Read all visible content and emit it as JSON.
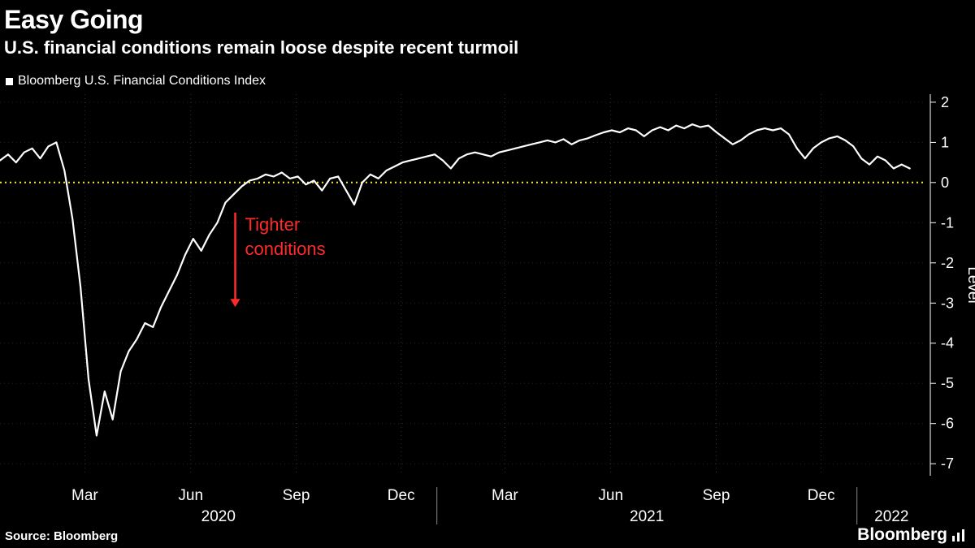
{
  "header": {
    "title": "Easy Going",
    "subtitle": "U.S. financial conditions remain loose despite recent turmoil"
  },
  "legend": {
    "series_label": "Bloomberg U.S. Financial Conditions Index",
    "swatch_color": "#ffffff"
  },
  "footer": {
    "source": "Source: Bloomberg",
    "brand": "Bloomberg"
  },
  "colors": {
    "background": "#000000",
    "line": "#ffffff",
    "zero_line": "#f2e745",
    "grid": "#2f2f2f",
    "grid_h": "#242424",
    "axis": "#ffffff",
    "annotation": "#ff2b2b"
  },
  "chart_data": {
    "type": "line",
    "title": "Easy Going",
    "subtitle": "U.S. financial conditions remain loose despite recent turmoil",
    "series_name": "Bloomberg U.S. Financial Conditions Index",
    "xlabel": "",
    "ylabel": "Level",
    "ylim": [
      -7.3,
      2.2
    ],
    "yticks": [
      2,
      1,
      0,
      -1,
      -2,
      -3,
      -4,
      -5,
      -6,
      -7
    ],
    "zero_line": 0,
    "grid": "dotted",
    "legend_position": "top-left",
    "x_domain_years": [
      2019.96,
      2022.165
    ],
    "x_ticks": [
      {
        "label": "Mar",
        "t": 2020.162
      },
      {
        "label": "Jun",
        "t": 2020.414
      },
      {
        "label": "Sep",
        "t": 2020.665
      },
      {
        "label": "Dec",
        "t": 2020.915
      },
      {
        "label": "Mar",
        "t": 2021.162
      },
      {
        "label": "Jun",
        "t": 2021.414
      },
      {
        "label": "Sep",
        "t": 2021.665
      },
      {
        "label": "Dec",
        "t": 2021.915
      }
    ],
    "year_labels": [
      {
        "label": "2020",
        "t_start": 2019.96,
        "t_end": 2021.0
      },
      {
        "label": "2021",
        "t_start": 2021.0,
        "t_end": 2022.0
      },
      {
        "label": "2022",
        "t_start": 2022.0,
        "t_end": 2022.165
      }
    ],
    "annotation": {
      "lines": [
        "Tighter",
        "conditions"
      ],
      "arrow_t": 2020.52,
      "arrow_from": -0.75,
      "arrow_to": -3.1
    },
    "series": {
      "name": "Bloomberg U.S. Financial Conditions Index",
      "t0": 2019.96,
      "dt": 0.019165,
      "values": [
        0.55,
        0.7,
        0.5,
        0.75,
        0.85,
        0.6,
        0.9,
        1.0,
        0.3,
        -0.9,
        -2.6,
        -4.9,
        -6.3,
        -5.2,
        -5.9,
        -4.7,
        -4.2,
        -3.9,
        -3.5,
        -3.6,
        -3.1,
        -2.7,
        -2.3,
        -1.8,
        -1.4,
        -1.7,
        -1.3,
        -1.0,
        -0.5,
        -0.3,
        -0.1,
        0.05,
        0.1,
        0.2,
        0.15,
        0.25,
        0.1,
        0.15,
        -0.05,
        0.05,
        -0.2,
        0.1,
        0.15,
        -0.2,
        -0.55,
        0.0,
        0.2,
        0.1,
        0.3,
        0.4,
        0.5,
        0.55,
        0.6,
        0.65,
        0.7,
        0.55,
        0.35,
        0.6,
        0.7,
        0.75,
        0.7,
        0.65,
        0.75,
        0.8,
        0.85,
        0.9,
        0.95,
        1.0,
        1.05,
        1.0,
        1.08,
        0.95,
        1.05,
        1.1,
        1.18,
        1.25,
        1.3,
        1.25,
        1.35,
        1.3,
        1.15,
        1.3,
        1.38,
        1.3,
        1.42,
        1.35,
        1.45,
        1.38,
        1.42,
        1.25,
        1.1,
        0.95,
        1.05,
        1.2,
        1.3,
        1.35,
        1.3,
        1.35,
        1.2,
        0.85,
        0.6,
        0.85,
        1.0,
        1.1,
        1.15,
        1.05,
        0.9,
        0.6,
        0.45,
        0.65,
        0.55,
        0.35,
        0.45,
        0.35
      ]
    }
  }
}
